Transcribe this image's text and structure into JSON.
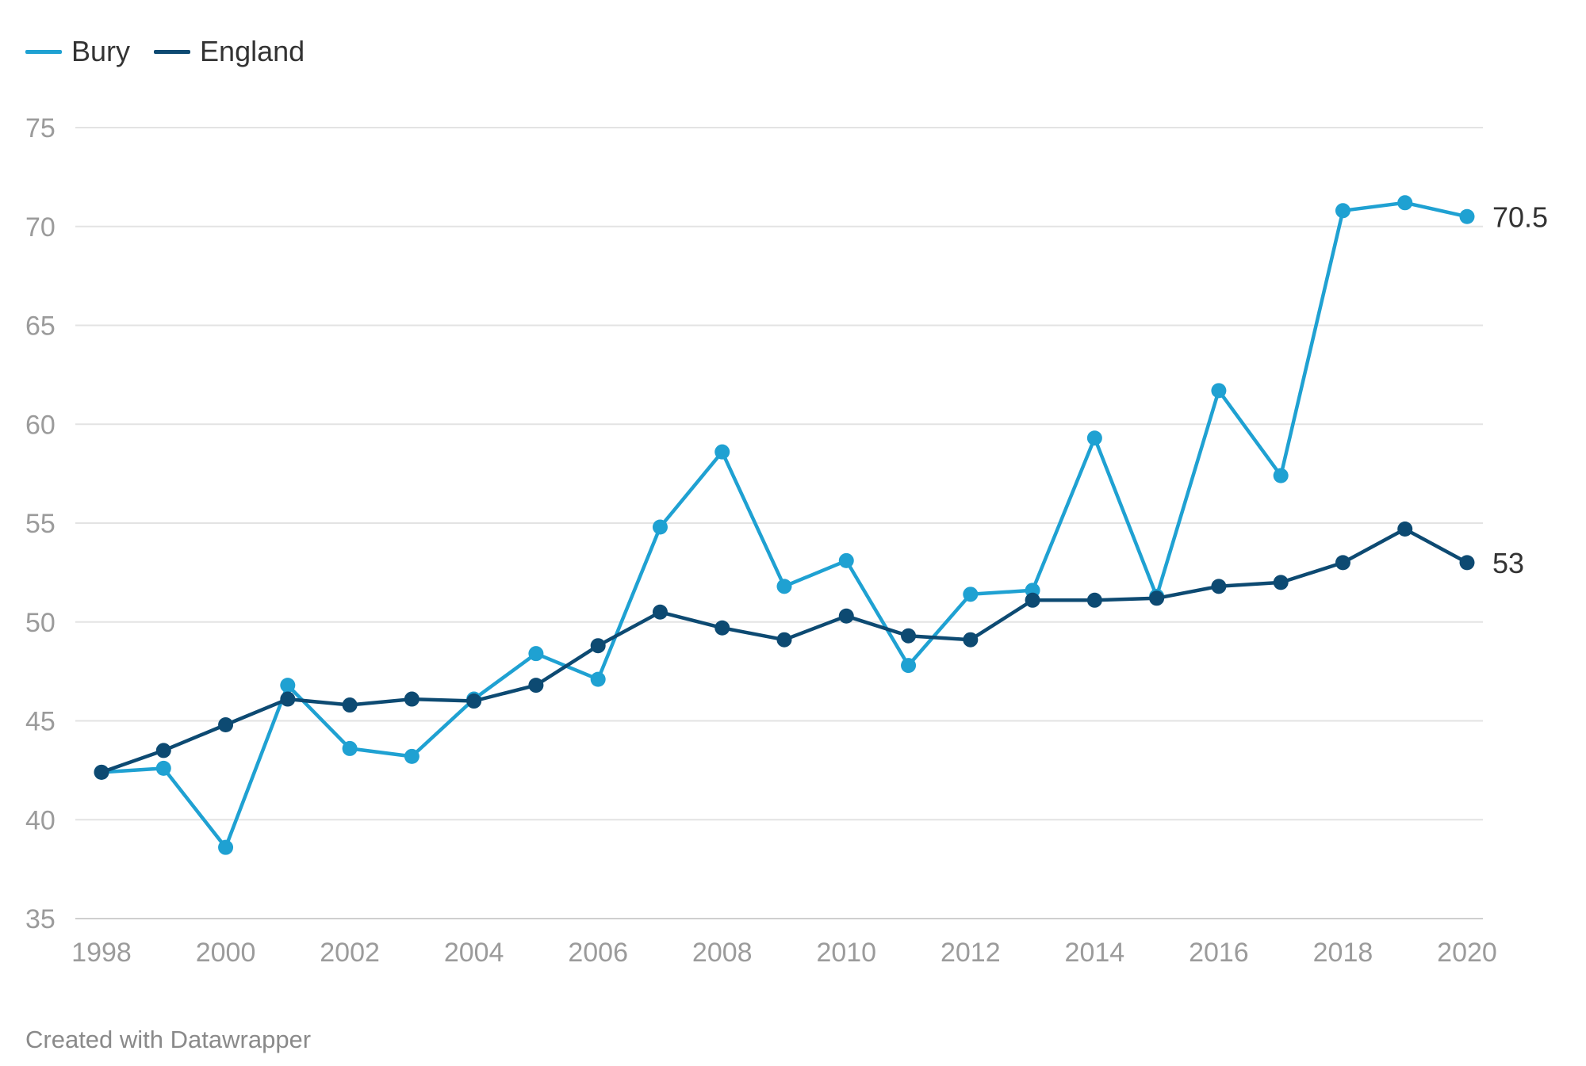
{
  "colors": {
    "bury": "#1fa1d2",
    "england": "#0d4a72",
    "grid": "#e3e3e3",
    "tick_text": "#9b9b9b",
    "end_label": "#333333"
  },
  "chart_data": {
    "type": "line",
    "title": "",
    "xlabel": "",
    "ylabel": "",
    "x": [
      1998,
      1999,
      2000,
      2001,
      2002,
      2003,
      2004,
      2005,
      2006,
      2007,
      2008,
      2009,
      2010,
      2011,
      2012,
      2013,
      2014,
      2015,
      2016,
      2017,
      2018,
      2019,
      2020
    ],
    "xticks": [
      1998,
      2000,
      2002,
      2004,
      2006,
      2008,
      2010,
      2012,
      2014,
      2016,
      2018,
      2020
    ],
    "yticks": [
      35,
      40,
      45,
      50,
      55,
      60,
      65,
      70,
      75
    ],
    "xlim": [
      1998,
      2020
    ],
    "ylim": [
      35,
      75
    ],
    "grid": "horizontal",
    "legend": "top-left",
    "series": [
      {
        "name": "Bury",
        "color_key": "bury",
        "values": [
          42.4,
          42.6,
          38.6,
          46.8,
          43.6,
          43.2,
          46.1,
          48.4,
          47.1,
          54.8,
          58.6,
          51.8,
          53.1,
          47.8,
          51.4,
          51.6,
          59.3,
          51.3,
          61.7,
          57.4,
          70.8,
          71.2,
          70.5
        ],
        "end_label": "70.5"
      },
      {
        "name": "England",
        "color_key": "england",
        "values": [
          42.4,
          43.5,
          44.8,
          46.1,
          45.8,
          46.1,
          46.0,
          46.8,
          48.8,
          50.5,
          49.7,
          49.1,
          50.3,
          49.3,
          49.1,
          51.1,
          51.1,
          51.2,
          51.8,
          52.0,
          53.0,
          54.7,
          53.0
        ],
        "end_label": "53"
      }
    ]
  },
  "footer": {
    "text": "Created with Datawrapper"
  }
}
